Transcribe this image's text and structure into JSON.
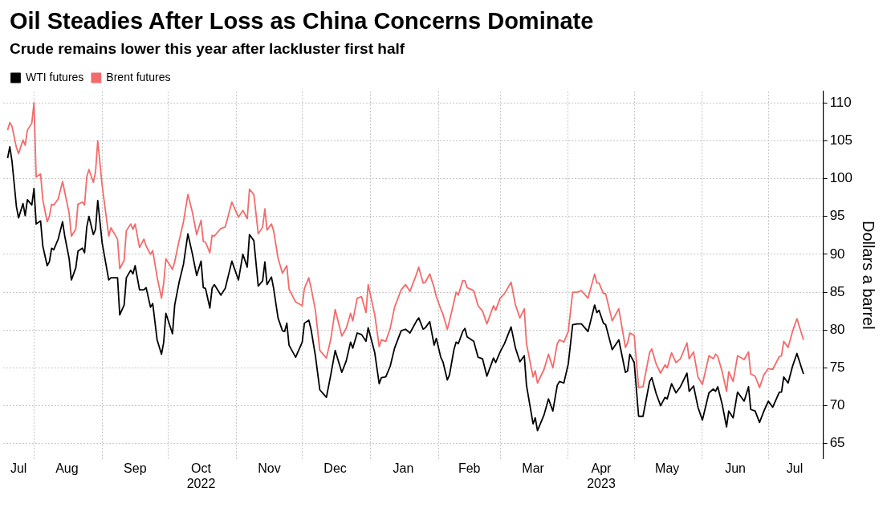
{
  "chart_data": {
    "type": "line",
    "title": "Oil Steadies After Loss as China Concerns Dominate",
    "subtitle": "Crude remains lower this year after lackluster first half",
    "ylabel": "Dollars a barrel",
    "x": [
      "2022-07-20",
      "2022-07-21",
      "2022-07-22",
      "2022-07-24",
      "2022-07-25",
      "2022-07-27",
      "2022-07-28",
      "2022-07-29",
      "2022-07-31",
      "2022-08-01",
      "2022-08-02",
      "2022-08-04",
      "2022-08-05",
      "2022-08-07",
      "2022-08-08",
      "2022-08-09",
      "2022-08-10",
      "2022-08-12",
      "2022-08-14",
      "2022-08-15",
      "2022-08-17",
      "2022-08-18",
      "2022-08-20",
      "2022-08-21",
      "2022-08-23",
      "2022-08-24",
      "2022-08-25",
      "2022-08-26",
      "2022-08-28",
      "2022-08-29",
      "2022-08-30",
      "2022-09-01",
      "2022-09-04",
      "2022-09-05",
      "2022-09-08",
      "2022-09-09",
      "2022-09-11",
      "2022-09-12",
      "2022-09-14",
      "2022-09-15",
      "2022-09-16",
      "2022-09-18",
      "2022-09-20",
      "2022-09-21",
      "2022-09-23",
      "2022-09-24",
      "2022-09-26",
      "2022-09-28",
      "2022-09-29",
      "2022-09-30",
      "2022-10-03",
      "2022-10-04",
      "2022-10-06",
      "2022-10-08",
      "2022-10-10",
      "2022-10-12",
      "2022-10-14",
      "2022-10-16",
      "2022-10-17",
      "2022-10-18",
      "2022-10-20",
      "2022-10-21",
      "2022-10-22",
      "2022-10-25",
      "2022-10-27",
      "2022-10-30",
      "2022-11-02",
      "2022-11-04",
      "2022-11-06",
      "2022-11-07",
      "2022-11-09",
      "2022-11-11",
      "2022-11-13",
      "2022-11-14",
      "2022-11-15",
      "2022-11-17",
      "2022-11-18",
      "2022-11-20",
      "2022-11-22",
      "2022-11-23",
      "2022-11-24",
      "2022-11-25",
      "2022-11-28",
      "2022-12-01",
      "2022-12-02",
      "2022-12-04",
      "2022-12-05",
      "2022-12-07",
      "2022-12-09",
      "2022-12-12",
      "2022-12-14",
      "2022-12-16",
      "2022-12-19",
      "2022-12-21",
      "2022-12-23",
      "2022-12-24",
      "2022-12-26",
      "2022-12-28",
      "2022-12-30",
      "2022-12-31",
      "2023-01-03",
      "2023-01-05",
      "2023-01-06",
      "2023-01-08",
      "2023-01-10",
      "2023-01-12",
      "2023-01-15",
      "2023-01-17",
      "2023-01-19",
      "2023-01-22",
      "2023-01-23",
      "2023-01-25",
      "2023-01-26",
      "2023-01-28",
      "2023-01-30",
      "2023-01-31",
      "2023-02-02",
      "2023-02-03",
      "2023-02-05",
      "2023-02-06",
      "2023-02-08",
      "2023-02-09",
      "2023-02-10",
      "2023-02-12",
      "2023-02-13",
      "2023-02-14",
      "2023-02-17",
      "2023-02-19",
      "2023-02-21",
      "2023-02-23",
      "2023-02-26",
      "2023-02-27",
      "2023-03-01",
      "2023-03-03",
      "2023-03-06",
      "2023-03-08",
      "2023-03-10",
      "2023-03-12",
      "2023-03-13",
      "2023-03-16",
      "2023-03-17",
      "2023-03-18",
      "2023-03-21",
      "2023-03-23",
      "2023-03-25",
      "2023-03-27",
      "2023-03-28",
      "2023-03-30",
      "2023-04-01",
      "2023-04-03",
      "2023-04-05",
      "2023-04-07",
      "2023-04-10",
      "2023-04-13",
      "2023-04-14",
      "2023-04-15",
      "2023-04-17",
      "2023-04-18",
      "2023-04-21",
      "2023-04-24",
      "2023-04-27",
      "2023-04-28",
      "2023-04-29",
      "2023-05-01",
      "2023-05-03",
      "2023-05-05",
      "2023-05-08",
      "2023-05-09",
      "2023-05-11",
      "2023-05-13",
      "2023-05-15",
      "2023-05-16",
      "2023-05-18",
      "2023-05-20",
      "2023-05-22",
      "2023-05-25",
      "2023-05-26",
      "2023-05-28",
      "2023-05-30",
      "2023-06-01",
      "2023-06-04",
      "2023-06-06",
      "2023-06-07",
      "2023-06-08",
      "2023-06-10",
      "2023-06-12",
      "2023-06-13",
      "2023-06-15",
      "2023-06-17",
      "2023-06-20",
      "2023-06-22",
      "2023-06-23",
      "2023-06-25",
      "2023-06-27",
      "2023-06-29",
      "2023-07-01",
      "2023-07-03",
      "2023-07-06",
      "2023-07-07",
      "2023-07-08",
      "2023-07-10",
      "2023-07-12",
      "2023-07-14",
      "2023-07-17"
    ],
    "series": [
      {
        "name": "WTI futures",
        "color": "#000000",
        "values": [
          102.7,
          104.2,
          102.3,
          96.3,
          94.8,
          96.7,
          95.1,
          97.2,
          96.5,
          98.7,
          94.0,
          94.4,
          91.1,
          88.5,
          89.0,
          90.8,
          90.6,
          92.0,
          94.3,
          92.4,
          89.4,
          86.6,
          88.2,
          90.4,
          90.8,
          90.2,
          93.6,
          95.0,
          92.6,
          93.3,
          97.1,
          91.5,
          86.6,
          86.9,
          86.9,
          82.0,
          83.3,
          86.9,
          87.9,
          87.4,
          88.5,
          85.3,
          85.3,
          85.6,
          83.0,
          83.5,
          78.7,
          76.8,
          78.4,
          82.2,
          79.5,
          83.3,
          86.3,
          88.7,
          92.7,
          90.1,
          87.2,
          89.1,
          85.6,
          85.5,
          82.9,
          85.5,
          86.0,
          84.6,
          85.5,
          89.1,
          86.6,
          90.0,
          88.3,
          92.6,
          91.8,
          85.8,
          86.5,
          89.0,
          86.0,
          87.0,
          85.5,
          81.6,
          79.9,
          79.8,
          80.9,
          78.0,
          76.4,
          78.4,
          80.9,
          81.3,
          80.1,
          76.6,
          72.1,
          71.1,
          74.1,
          77.3,
          74.4,
          75.9,
          78.4,
          77.6,
          79.6,
          79.4,
          78.5,
          80.3,
          77.0,
          72.9,
          73.7,
          73.8,
          75.2,
          77.6,
          79.9,
          80.1,
          79.6,
          81.2,
          81.6,
          80.1,
          80.3,
          81.1,
          78.0,
          78.9,
          76.4,
          75.8,
          73.4,
          74.1,
          77.4,
          78.4,
          78.2,
          79.8,
          80.2,
          79.1,
          78.5,
          76.4,
          76.2,
          73.9,
          76.3,
          75.7,
          77.1,
          78.2,
          80.4,
          77.6,
          75.8,
          76.6,
          72.7,
          67.6,
          68.4,
          66.7,
          68.8,
          70.9,
          69.3,
          72.7,
          73.2,
          73.0,
          75.5,
          80.7,
          80.8,
          80.8,
          79.8,
          83.3,
          82.3,
          82.6,
          80.9,
          80.7,
          77.4,
          78.7,
          74.4,
          74.6,
          76.8,
          75.7,
          68.6,
          68.6,
          73.2,
          73.7,
          71.6,
          70.0,
          71.1,
          70.9,
          72.9,
          71.7,
          72.5,
          74.3,
          71.9,
          72.6,
          69.8,
          68.1,
          71.7,
          72.2,
          71.9,
          72.5,
          70.2,
          67.2,
          69.3,
          68.4,
          71.8,
          70.6,
          72.5,
          69.5,
          69.3,
          67.8,
          69.3,
          70.6,
          69.8,
          71.8,
          71.8,
          73.8,
          73.0,
          75.2,
          76.9,
          74.2
        ]
      },
      {
        "name": "Brent futures",
        "color": "#f36b6b",
        "values": [
          106.4,
          107.4,
          106.9,
          104.1,
          103.3,
          105.1,
          104.4,
          106.4,
          107.3,
          110.0,
          100.2,
          100.6,
          97.2,
          94.3,
          95.0,
          96.6,
          96.5,
          97.3,
          99.6,
          98.2,
          95.4,
          92.4,
          93.3,
          96.6,
          96.9,
          96.5,
          100.2,
          101.2,
          99.5,
          100.9,
          105.0,
          99.1,
          92.4,
          93.5,
          92.0,
          88.1,
          89.2,
          93.1,
          94.0,
          93.3,
          94.0,
          90.9,
          92.0,
          91.1,
          90.0,
          90.5,
          87.0,
          84.2,
          86.2,
          89.4,
          88.0,
          89.0,
          91.8,
          94.3,
          97.9,
          95.6,
          92.6,
          94.5,
          91.7,
          91.6,
          90.2,
          92.5,
          92.4,
          93.4,
          93.6,
          96.9,
          94.9,
          95.8,
          94.7,
          98.6,
          97.9,
          92.7,
          93.6,
          96.0,
          93.2,
          94.0,
          93.1,
          89.5,
          87.5,
          88.0,
          88.5,
          85.4,
          83.7,
          83.2,
          85.5,
          86.9,
          85.6,
          82.6,
          77.3,
          76.3,
          78.8,
          82.7,
          79.2,
          80.2,
          82.2,
          81.2,
          84.2,
          84.4,
          82.3,
          86.0,
          82.0,
          77.8,
          78.7,
          78.5,
          80.2,
          83.0,
          85.3,
          86.0,
          85.1,
          87.4,
          88.3,
          86.2,
          86.3,
          87.4,
          85.6,
          84.4,
          82.8,
          82.1,
          80.1,
          81.2,
          83.7,
          85.0,
          84.6,
          86.5,
          86.5,
          85.6,
          85.2,
          83.2,
          82.5,
          80.8,
          83.2,
          82.6,
          84.2,
          84.8,
          86.3,
          83.3,
          81.6,
          82.8,
          78.2,
          73.8,
          74.6,
          73.0,
          74.8,
          76.8,
          75.0,
          78.2,
          78.7,
          78.4,
          79.8,
          85.0,
          85.0,
          85.2,
          84.2,
          87.4,
          86.2,
          86.2,
          84.8,
          84.8,
          81.2,
          82.8,
          77.7,
          78.3,
          79.6,
          79.3,
          72.4,
          72.5,
          77.0,
          77.5,
          75.5,
          74.3,
          75.4,
          75.0,
          77.0,
          75.7,
          76.2,
          78.3,
          76.2,
          77.1,
          73.8,
          72.8,
          76.6,
          76.2,
          76.8,
          76.5,
          74.5,
          71.9,
          74.5,
          73.2,
          76.6,
          76.1,
          77.1,
          74.2,
          73.9,
          72.4,
          74.1,
          74.9,
          74.8,
          76.5,
          76.6,
          78.5,
          77.7,
          79.8,
          81.5,
          78.7
        ]
      }
    ],
    "xlim": [
      "2022-07-18",
      "2023-07-26"
    ],
    "xticks": [
      {
        "value": "2022-07-25",
        "label": "Jul"
      },
      {
        "value": "2022-08-01",
        "label": null
      },
      {
        "value": "2022-08-16",
        "label": "Aug"
      },
      {
        "value": "2022-09-01",
        "label": null
      },
      {
        "value": "2022-09-16",
        "label": "Sep"
      },
      {
        "value": "2022-10-01",
        "label": null
      },
      {
        "value": "2022-10-16",
        "label": "Oct\n2022"
      },
      {
        "value": "2022-11-01",
        "label": null
      },
      {
        "value": "2022-11-16",
        "label": "Nov"
      },
      {
        "value": "2022-12-01",
        "label": null
      },
      {
        "value": "2022-12-16",
        "label": "Dec"
      },
      {
        "value": "2023-01-01",
        "label": null
      },
      {
        "value": "2023-01-16",
        "label": "Jan"
      },
      {
        "value": "2023-02-01",
        "label": null
      },
      {
        "value": "2023-02-15",
        "label": "Feb"
      },
      {
        "value": "2023-03-01",
        "label": null
      },
      {
        "value": "2023-03-16",
        "label": "Mar"
      },
      {
        "value": "2023-04-01",
        "label": null
      },
      {
        "value": "2023-04-16",
        "label": "Apr\n2023"
      },
      {
        "value": "2023-05-01",
        "label": null
      },
      {
        "value": "2023-05-16",
        "label": "May"
      },
      {
        "value": "2023-06-01",
        "label": null
      },
      {
        "value": "2023-06-16",
        "label": "Jun"
      },
      {
        "value": "2023-07-01",
        "label": null
      },
      {
        "value": "2023-07-13",
        "label": "Jul"
      }
    ],
    "ylim": [
      63,
      111.5
    ],
    "yticks": [
      65,
      70,
      75,
      80,
      85,
      90,
      95,
      100,
      105,
      110
    ],
    "grid": true,
    "legend": "top left"
  }
}
